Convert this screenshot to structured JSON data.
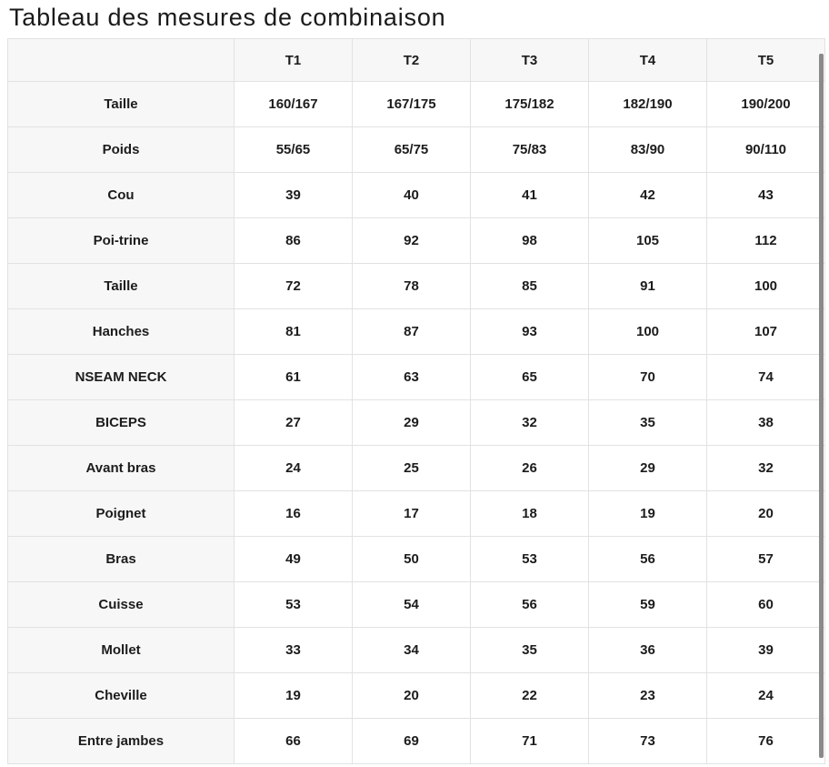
{
  "title": "Tableau des mesures de combinaison",
  "colors": {
    "header_background": "#f7f7f7",
    "cell_background": "#ffffff",
    "border": "#e2e2e2",
    "text": "#1c1c1c",
    "scrollbar_thumb": "#8a8a8a"
  },
  "chart_data": {
    "type": "table",
    "title": "Tableau des mesures de combinaison",
    "columns": [
      "",
      "T1",
      "T2",
      "T3",
      "T4",
      "T5"
    ],
    "rows": [
      {
        "label": "Taille",
        "values": [
          "160/167",
          "167/175",
          "175/182",
          "182/190",
          "190/200"
        ]
      },
      {
        "label": "Poids",
        "values": [
          "55/65",
          "65/75",
          "75/83",
          "83/90",
          "90/110"
        ]
      },
      {
        "label": "Cou",
        "values": [
          "39",
          "40",
          "41",
          "42",
          "43"
        ]
      },
      {
        "label": "Poi-trine",
        "values": [
          "86",
          "92",
          "98",
          "105",
          "112"
        ]
      },
      {
        "label": "Taille",
        "values": [
          "72",
          "78",
          "85",
          "91",
          "100"
        ]
      },
      {
        "label": "Hanches",
        "values": [
          "81",
          "87",
          "93",
          "100",
          "107"
        ]
      },
      {
        "label": "NSEAM NECK",
        "values": [
          "61",
          "63",
          "65",
          "70",
          "74"
        ]
      },
      {
        "label": "BICEPS",
        "values": [
          "27",
          "29",
          "32",
          "35",
          "38"
        ]
      },
      {
        "label": "Avant bras",
        "values": [
          "24",
          "25",
          "26",
          "29",
          "32"
        ]
      },
      {
        "label": "Poignet",
        "values": [
          "16",
          "17",
          "18",
          "19",
          "20"
        ]
      },
      {
        "label": "Bras",
        "values": [
          "49",
          "50",
          "53",
          "56",
          "57"
        ]
      },
      {
        "label": "Cuisse",
        "values": [
          "53",
          "54",
          "56",
          "59",
          "60"
        ]
      },
      {
        "label": "Mollet",
        "values": [
          "33",
          "34",
          "35",
          "36",
          "39"
        ]
      },
      {
        "label": "Cheville",
        "values": [
          "19",
          "20",
          "22",
          "23",
          "24"
        ]
      },
      {
        "label": "Entre jambes",
        "values": [
          "66",
          "69",
          "71",
          "73",
          "76"
        ]
      }
    ]
  }
}
